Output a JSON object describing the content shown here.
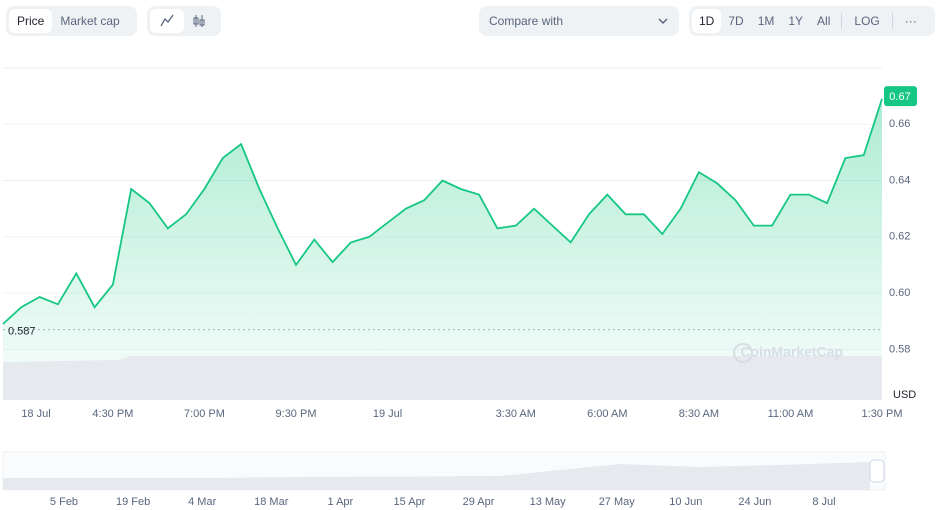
{
  "toolbar": {
    "metric_tabs": [
      "Price",
      "Market cap"
    ],
    "compare": "Compare with",
    "ranges": [
      "1D",
      "7D",
      "1M",
      "1Y",
      "All"
    ],
    "scale": "LOG",
    "more": "···"
  },
  "chart_data": {
    "type": "line",
    "categories": [
      null,
      "18 Jul",
      null,
      null,
      null,
      null,
      "4:30 PM",
      null,
      null,
      null,
      null,
      "7:00 PM",
      null,
      null,
      null,
      null,
      "9:30 PM",
      null,
      null,
      null,
      null,
      "19 Jul",
      null,
      null,
      null,
      null,
      null,
      null,
      "3:30 AM",
      null,
      null,
      null,
      null,
      "6:00 AM",
      null,
      null,
      null,
      null,
      "8:30 AM",
      null,
      null,
      null,
      null,
      "11:00 AM",
      null,
      null,
      null,
      null,
      "1:30 PM"
    ],
    "values": [
      0.589,
      0.595,
      0.5986,
      0.596,
      0.607,
      0.595,
      0.603,
      0.637,
      0.632,
      0.623,
      0.628,
      0.637,
      0.648,
      0.653,
      0.637,
      0.623,
      0.61,
      0.619,
      0.611,
      0.618,
      0.62,
      0.625,
      0.63,
      0.633,
      0.64,
      0.637,
      0.635,
      0.623,
      0.624,
      0.63,
      0.624,
      0.618,
      0.628,
      0.635,
      0.628,
      0.628,
      0.621,
      0.63,
      0.643,
      0.639,
      0.633,
      0.624,
      0.624,
      0.635,
      0.635,
      0.632,
      0.648,
      0.649,
      0.669
    ],
    "color": "#16c784",
    "ylim": [
      0.562,
      0.68
    ],
    "yticks": [
      0.58,
      {
        "value": 0.6,
        "label": "0.60"
      },
      0.62,
      0.64,
      0.66
    ],
    "y_axis_label": "USD",
    "grid": true,
    "open_price": 0.587,
    "current_price": 0.67,
    "watermark": "CoinMarketCap"
  },
  "navigator": {
    "labels": [
      "5 Feb",
      "19 Feb",
      "4 Mar",
      "18 Mar",
      "1 Apr",
      "15 Apr",
      "29 Apr",
      "13 May",
      "27 May",
      "10 Jun",
      "24 Jun",
      "8 Jul"
    ]
  }
}
